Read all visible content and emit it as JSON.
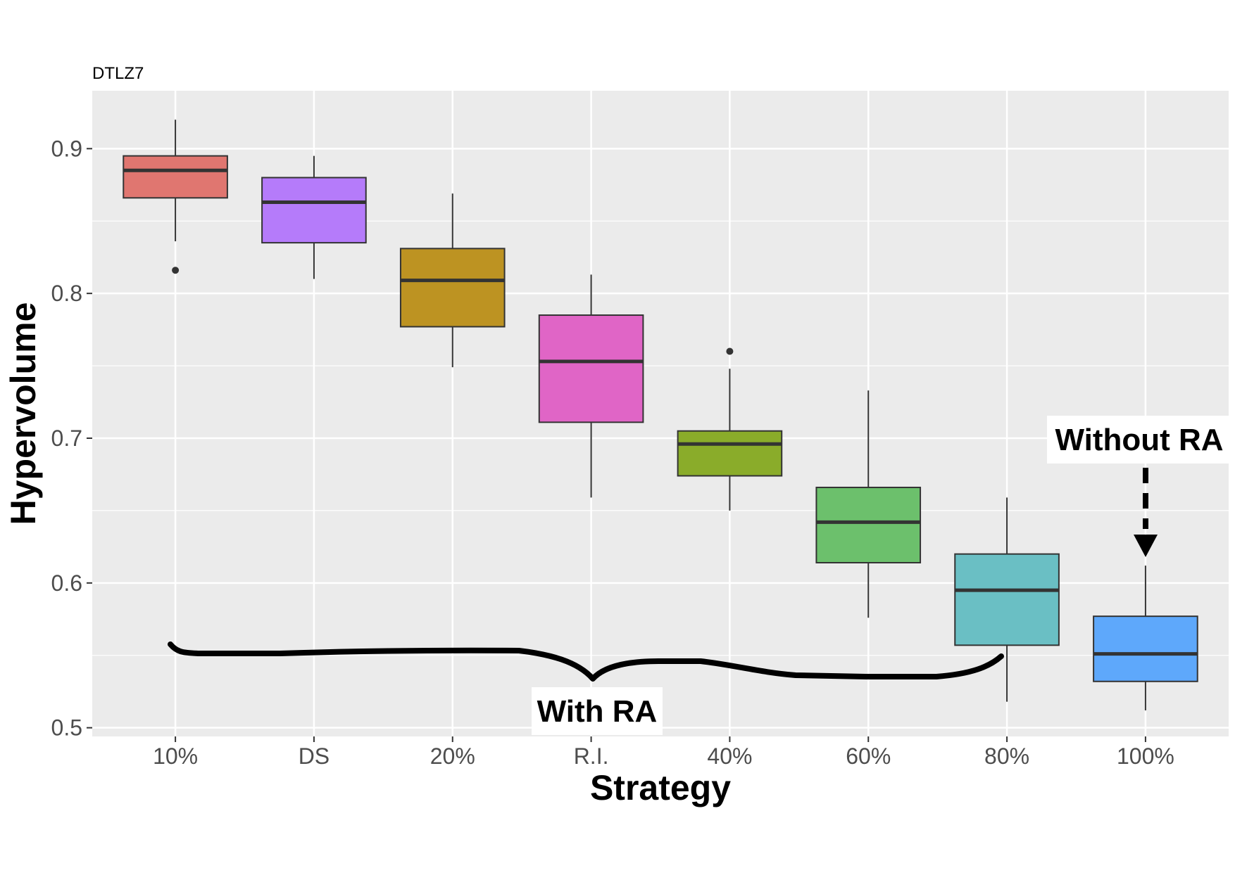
{
  "chart_data": {
    "type": "box",
    "title": "DTLZ7",
    "xlabel": "Strategy",
    "ylabel": "Hypervolume",
    "ylim": [
      0.494,
      0.94
    ],
    "yticks": [
      0.5,
      0.6,
      0.7,
      0.8,
      0.9
    ],
    "ytick_labels": [
      "0.5",
      "0.6",
      "0.7",
      "0.8",
      "0.9"
    ],
    "grid": true,
    "legend": "none",
    "categories": [
      "10%",
      "DS",
      "20%",
      "R.I.",
      "40%",
      "60%",
      "80%",
      "100%"
    ],
    "boxes": [
      {
        "category": "10%",
        "color": "#E07670",
        "whisker_low": 0.836,
        "q1": 0.866,
        "median": 0.885,
        "q3": 0.895,
        "whisker_high": 0.92,
        "outliers": [
          0.816
        ]
      },
      {
        "category": "DS",
        "color": "#B57BFA",
        "whisker_low": 0.81,
        "q1": 0.835,
        "median": 0.863,
        "q3": 0.88,
        "whisker_high": 0.895,
        "outliers": []
      },
      {
        "category": "20%",
        "color": "#BD9322",
        "whisker_low": 0.749,
        "q1": 0.777,
        "median": 0.809,
        "q3": 0.831,
        "whisker_high": 0.869,
        "outliers": []
      },
      {
        "category": "R.I.",
        "color": "#E065C6",
        "whisker_low": 0.659,
        "q1": 0.711,
        "median": 0.753,
        "q3": 0.785,
        "whisker_high": 0.813,
        "outliers": []
      },
      {
        "category": "40%",
        "color": "#8AAC2A",
        "whisker_low": 0.65,
        "q1": 0.674,
        "median": 0.696,
        "q3": 0.705,
        "whisker_high": 0.748,
        "outliers": [
          0.76
        ]
      },
      {
        "category": "60%",
        "color": "#6CC06C",
        "whisker_low": 0.576,
        "q1": 0.614,
        "median": 0.642,
        "q3": 0.666,
        "whisker_high": 0.733,
        "outliers": []
      },
      {
        "category": "80%",
        "color": "#6ABFC4",
        "whisker_low": 0.518,
        "q1": 0.557,
        "median": 0.595,
        "q3": 0.62,
        "whisker_high": 0.659,
        "outliers": []
      },
      {
        "category": "100%",
        "color": "#5EA8FB",
        "whisker_low": 0.512,
        "q1": 0.532,
        "median": 0.551,
        "q3": 0.577,
        "whisker_high": 0.612,
        "outliers": []
      }
    ],
    "annotations": [
      {
        "text": "With RA"
      },
      {
        "text": "Without RA"
      }
    ]
  },
  "colors": {
    "panel_background": "#EBEBEB",
    "grid": "#FFFFFF",
    "box_outline": "#333333",
    "tick_text": "#4D4D4D",
    "annotation": "#000000"
  }
}
